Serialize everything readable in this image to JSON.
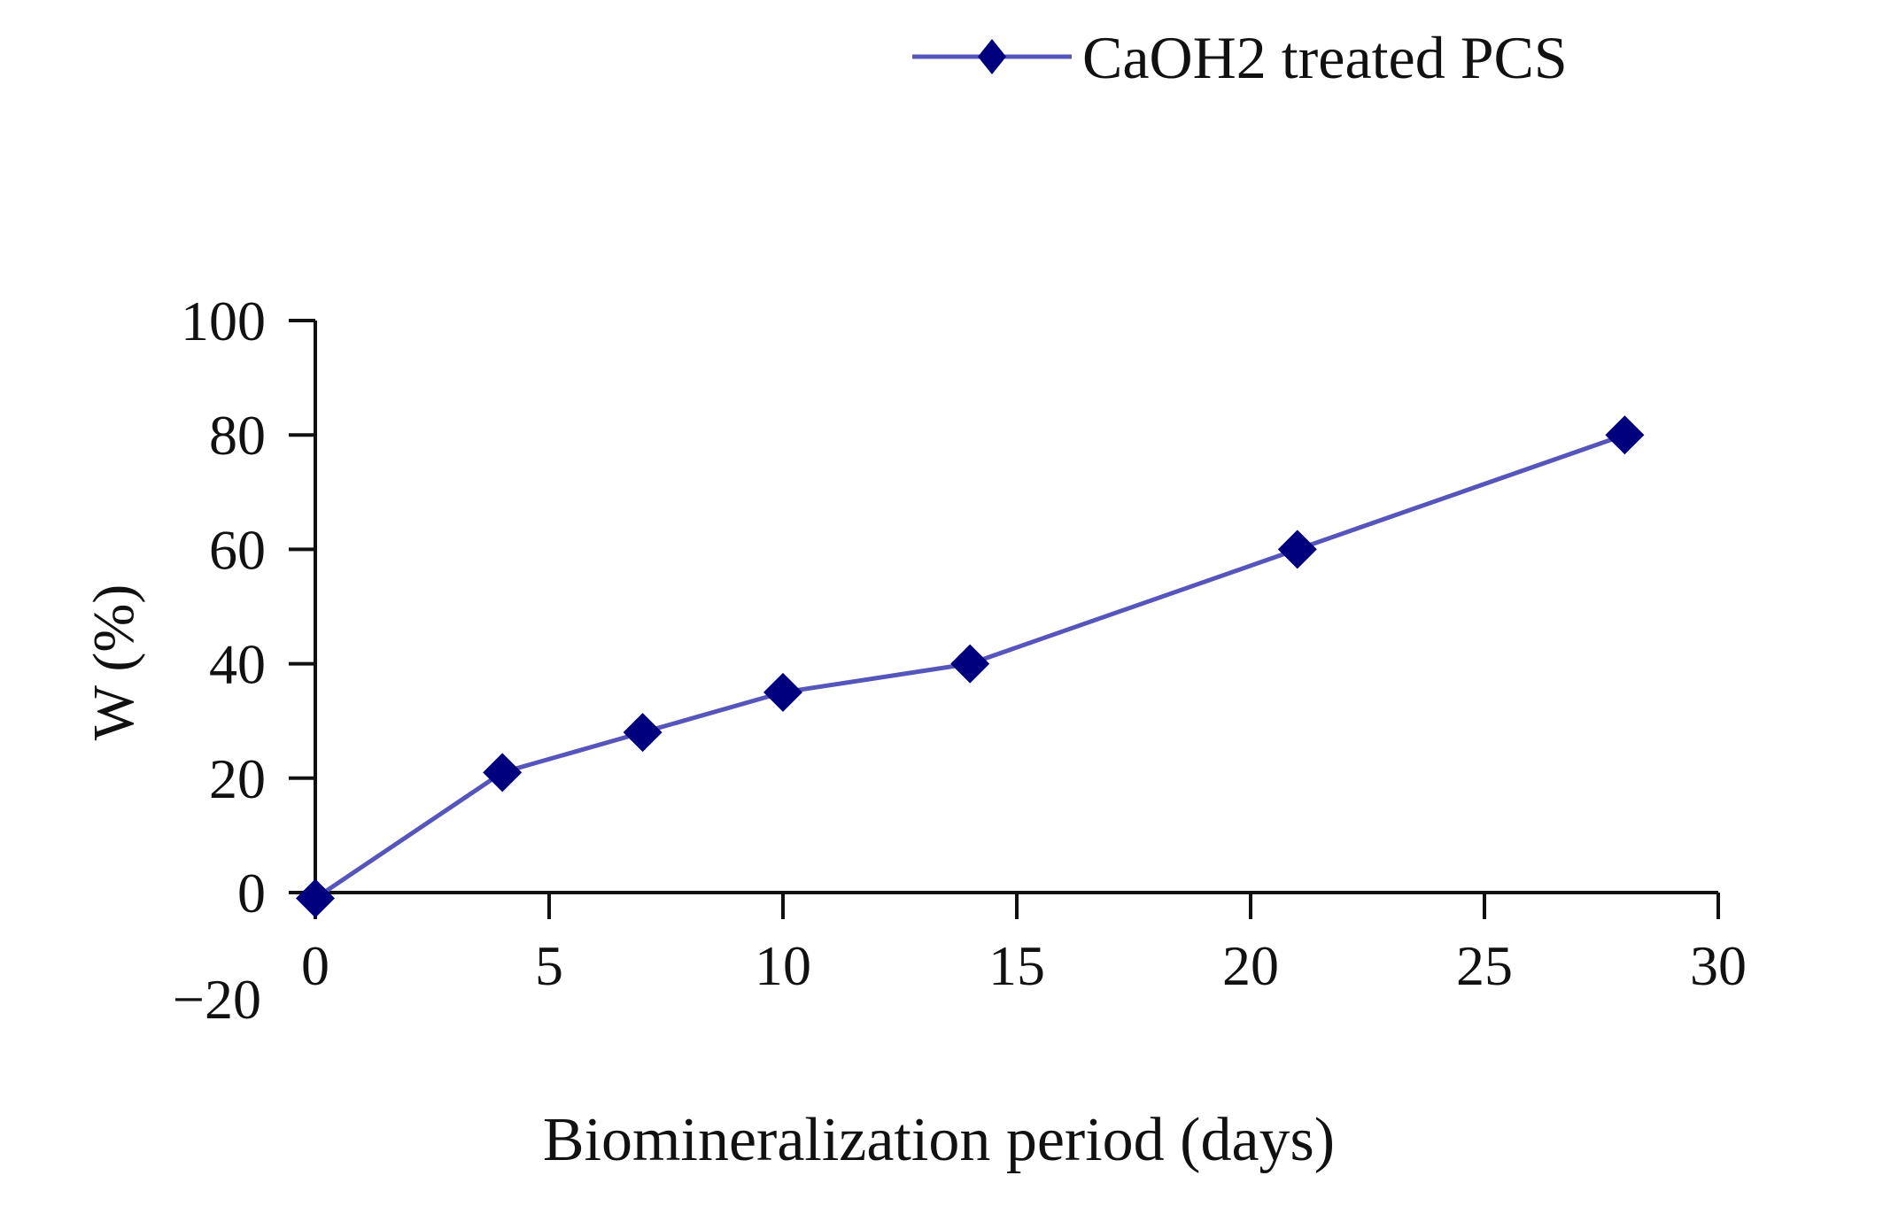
{
  "chart_data": {
    "type": "line",
    "title": "",
    "xlabel": "Biomineralization period (days)",
    "ylabel": "W (%)",
    "xlim": [
      0,
      30
    ],
    "ylim": [
      -20,
      100
    ],
    "x_ticks": [
      "0",
      "5",
      "10",
      "15",
      "20",
      "25",
      "30"
    ],
    "y_ticks": [
      "100",
      "80",
      "60",
      "40",
      "20",
      "0",
      "−20"
    ],
    "grid": false,
    "legend_position": "top",
    "series": [
      {
        "name": "CaOH2 treated PCS",
        "color": "#00007f",
        "line_color": "#5555bb",
        "marker": "diamond",
        "x": [
          0,
          4,
          7,
          10,
          14,
          21,
          28
        ],
        "y": [
          -1,
          21,
          28,
          35,
          40,
          60,
          80
        ]
      }
    ]
  }
}
